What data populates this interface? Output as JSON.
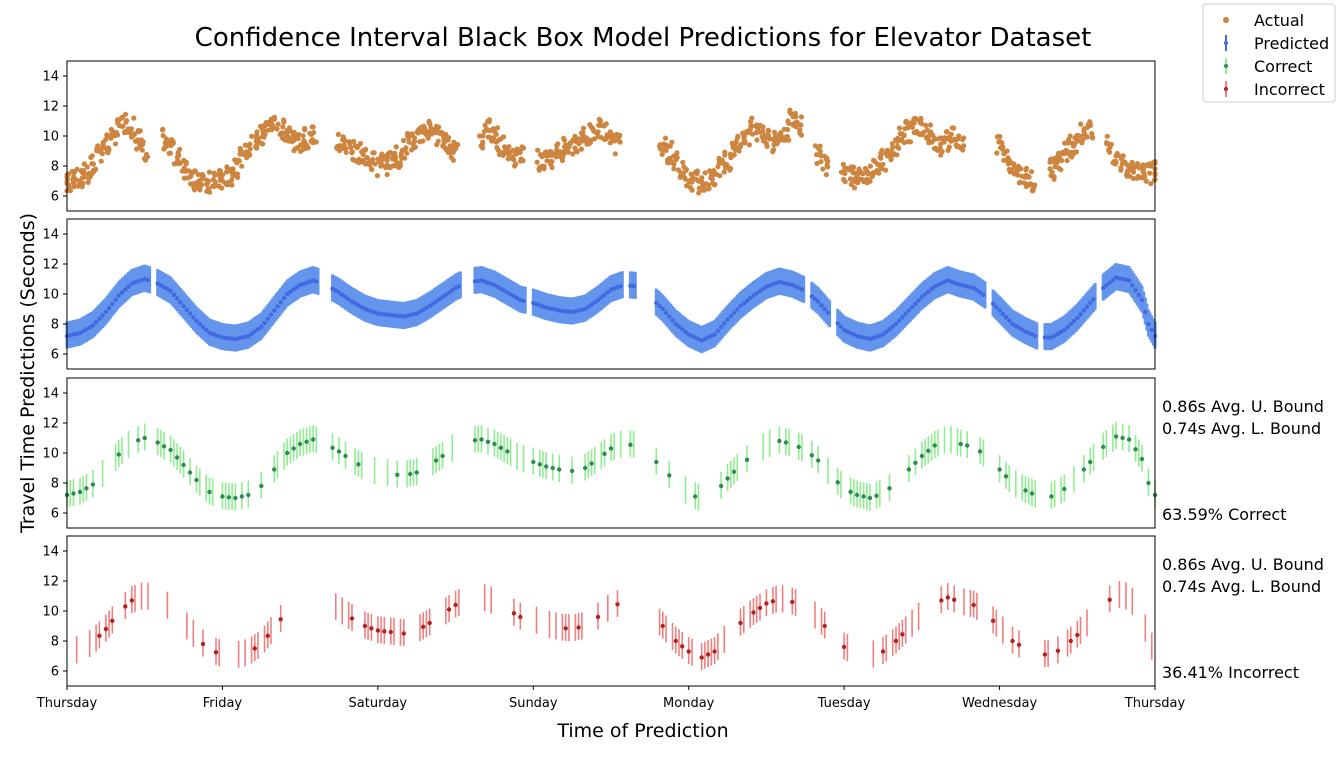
{
  "chart_data": {
    "type": "scatter",
    "title": "Confidence Interval Black Box Model Predictions for Elevator Dataset",
    "xlabel": "Time of Prediction",
    "ylabel": "Travel Time Predictions (Seconds)",
    "x_ticks": [
      "Thursday",
      "Friday",
      "Saturday",
      "Sunday",
      "Monday",
      "Tuesday",
      "Wednesday",
      "Thursday"
    ],
    "ylim": [
      5,
      15
    ],
    "yticks": [
      6,
      8,
      10,
      12,
      14
    ],
    "grid": false,
    "legend_placement": "top-right",
    "legend": [
      {
        "label": "Actual",
        "color": "#cd853f"
      },
      {
        "label": "Predicted",
        "color": "#4169e1"
      },
      {
        "label": "Correct",
        "color": "#2e8b57"
      },
      {
        "label": "Incorrect",
        "color": "#b22222"
      }
    ],
    "day_start_hours": [
      0,
      24,
      48,
      72,
      96,
      120,
      144,
      168
    ],
    "gaps_hours": [
      [
        13,
        14
      ],
      [
        39,
        41
      ],
      [
        61,
        63
      ],
      [
        71,
        72
      ],
      [
        86,
        87
      ],
      [
        88,
        91
      ],
      [
        114,
        115
      ],
      [
        118,
        119
      ],
      [
        142,
        143
      ],
      [
        150,
        151
      ],
      [
        159,
        160
      ]
    ],
    "panels": [
      {
        "name": "actual",
        "series": "Actual",
        "color": "#cd853f",
        "description_profile": "scatter of observed travel times",
        "points": [
          [
            0,
            6.8
          ],
          [
            1,
            7.0
          ],
          [
            2,
            7.2
          ],
          [
            3,
            7.5
          ],
          [
            4,
            8.0
          ],
          [
            5,
            8.9
          ],
          [
            6,
            9.4
          ],
          [
            7,
            9.8
          ],
          [
            8,
            10.5
          ],
          [
            9,
            10.9
          ],
          [
            10,
            10.6
          ],
          [
            11,
            9.7
          ],
          [
            12,
            9.0
          ],
          [
            15,
            9.8
          ],
          [
            16,
            9.2
          ],
          [
            17,
            8.7
          ],
          [
            18,
            7.8
          ],
          [
            19,
            7.2
          ],
          [
            20,
            7.0
          ],
          [
            21,
            7.1
          ],
          [
            22,
            6.9
          ],
          [
            23,
            7.0
          ],
          [
            24,
            7.1
          ],
          [
            25,
            7.3
          ],
          [
            26,
            7.8
          ],
          [
            27,
            8.5
          ],
          [
            28,
            9.0
          ],
          [
            29,
            9.6
          ],
          [
            30,
            10.1
          ],
          [
            31,
            10.5
          ],
          [
            32,
            10.8
          ],
          [
            33,
            10.4
          ],
          [
            34,
            9.9
          ],
          [
            35,
            9.6
          ],
          [
            36,
            9.5
          ],
          [
            37,
            9.8
          ],
          [
            38,
            10.0
          ],
          [
            42,
            9.7
          ],
          [
            43,
            9.4
          ],
          [
            44,
            9.1
          ],
          [
            45,
            8.8
          ],
          [
            46,
            8.5
          ],
          [
            47,
            8.2
          ],
          [
            48,
            8.0
          ],
          [
            49,
            8.1
          ],
          [
            50,
            8.3
          ],
          [
            51,
            8.6
          ],
          [
            52,
            9.0
          ],
          [
            53,
            9.5
          ],
          [
            54,
            9.9
          ],
          [
            55,
            10.2
          ],
          [
            56,
            10.4
          ],
          [
            57,
            10.0
          ],
          [
            58,
            9.6
          ],
          [
            59,
            9.2
          ],
          [
            60,
            9.0
          ],
          [
            64,
            9.8
          ],
          [
            65,
            10.4
          ],
          [
            66,
            9.9
          ],
          [
            67,
            9.4
          ],
          [
            68,
            9.0
          ],
          [
            69,
            8.7
          ],
          [
            70,
            8.6
          ],
          [
            73,
            8.4
          ],
          [
            74,
            8.3
          ],
          [
            75,
            8.6
          ],
          [
            76,
            8.9
          ],
          [
            77,
            9.2
          ],
          [
            78,
            9.4
          ],
          [
            79,
            9.6
          ],
          [
            80,
            9.9
          ],
          [
            81,
            10.1
          ],
          [
            82,
            10.6
          ],
          [
            83,
            10.3
          ],
          [
            84,
            9.8
          ],
          [
            85,
            9.5
          ],
          [
            92,
            9.4
          ],
          [
            93,
            8.9
          ],
          [
            94,
            8.3
          ],
          [
            95,
            7.6
          ],
          [
            96,
            7.2
          ],
          [
            97,
            7.0
          ],
          [
            98,
            6.9
          ],
          [
            99,
            7.1
          ],
          [
            100,
            7.4
          ],
          [
            101,
            7.9
          ],
          [
            102,
            8.4
          ],
          [
            103,
            9.0
          ],
          [
            104,
            9.6
          ],
          [
            105,
            10.1
          ],
          [
            106,
            10.5
          ],
          [
            107,
            10.3
          ],
          [
            108,
            9.9
          ],
          [
            109,
            9.6
          ],
          [
            110,
            9.8
          ],
          [
            111,
            10.4
          ],
          [
            112,
            11.2
          ],
          [
            113,
            10.6
          ],
          [
            116,
            8.8
          ],
          [
            117,
            8.0
          ],
          [
            120,
            7.6
          ],
          [
            121,
            7.3
          ],
          [
            122,
            7.1
          ],
          [
            123,
            7.2
          ],
          [
            124,
            7.4
          ],
          [
            125,
            7.9
          ],
          [
            126,
            8.4
          ],
          [
            127,
            8.9
          ],
          [
            128,
            9.4
          ],
          [
            129,
            9.9
          ],
          [
            130,
            10.3
          ],
          [
            131,
            10.8
          ],
          [
            132,
            10.5
          ],
          [
            133,
            10.1
          ],
          [
            134,
            9.5
          ],
          [
            135,
            9.2
          ],
          [
            136,
            9.6
          ],
          [
            137,
            9.9
          ],
          [
            138,
            9.5
          ],
          [
            144,
            9.3
          ],
          [
            145,
            8.6
          ],
          [
            146,
            7.8
          ],
          [
            147,
            7.4
          ],
          [
            148,
            7.2
          ],
          [
            149,
            7.0
          ],
          [
            152,
            7.8
          ],
          [
            153,
            8.4
          ],
          [
            154,
            8.9
          ],
          [
            155,
            9.3
          ],
          [
            156,
            9.6
          ],
          [
            157,
            10.2
          ],
          [
            158,
            10.5
          ],
          [
            161,
            9.6
          ],
          [
            162,
            8.8
          ],
          [
            163,
            8.3
          ],
          [
            164,
            7.9
          ],
          [
            165,
            7.6
          ],
          [
            166,
            7.4
          ],
          [
            167,
            7.5
          ],
          [
            168,
            7.6
          ]
        ]
      },
      {
        "name": "predicted",
        "series": "Predicted",
        "color": "#4169e1",
        "band_color": "#6495ed",
        "description_profile": "predicted mean with confidence band"
      },
      {
        "name": "correct",
        "series": "Correct",
        "color": "#2e8b57",
        "band_color": "#90ee90",
        "annotations": [
          "0.86s Avg. U. Bound",
          "0.74s Avg. L. Bound",
          "63.59% Correct"
        ]
      },
      {
        "name": "incorrect",
        "series": "Incorrect",
        "color": "#b22222",
        "band_color": "#f08080",
        "annotations": [
          "0.86s Avg. U. Bound",
          "0.74s Avg. L. Bound",
          "36.41% Incorrect"
        ]
      }
    ],
    "prediction_curve": [
      [
        0,
        7.2
      ],
      [
        2,
        7.4
      ],
      [
        4,
        7.9
      ],
      [
        6,
        8.8
      ],
      [
        8,
        9.9
      ],
      [
        10,
        10.7
      ],
      [
        12,
        11.0
      ],
      [
        14,
        10.7
      ],
      [
        16,
        10.2
      ],
      [
        18,
        9.2
      ],
      [
        20,
        8.2
      ],
      [
        22,
        7.4
      ],
      [
        24,
        7.1
      ],
      [
        26,
        7.0
      ],
      [
        28,
        7.2
      ],
      [
        30,
        7.8
      ],
      [
        32,
        8.9
      ],
      [
        34,
        10.0
      ],
      [
        36,
        10.6
      ],
      [
        38,
        10.9
      ],
      [
        40,
        10.6
      ],
      [
        42,
        10.1
      ],
      [
        44,
        9.5
      ],
      [
        46,
        9.0
      ],
      [
        48,
        8.7
      ],
      [
        50,
        8.6
      ],
      [
        52,
        8.5
      ],
      [
        54,
        8.7
      ],
      [
        56,
        9.2
      ],
      [
        58,
        9.8
      ],
      [
        60,
        10.4
      ],
      [
        62,
        10.8
      ],
      [
        64,
        10.9
      ],
      [
        66,
        10.6
      ],
      [
        68,
        10.1
      ],
      [
        70,
        9.6
      ],
      [
        72,
        9.4
      ],
      [
        74,
        9.1
      ],
      [
        76,
        8.9
      ],
      [
        78,
        8.8
      ],
      [
        80,
        9.0
      ],
      [
        82,
        9.6
      ],
      [
        84,
        10.3
      ],
      [
        86,
        10.6
      ],
      [
        88,
        10.5
      ],
      [
        90,
        9.8
      ],
      [
        92,
        9.0
      ],
      [
        94,
        8.0
      ],
      [
        96,
        7.3
      ],
      [
        98,
        6.9
      ],
      [
        100,
        7.3
      ],
      [
        102,
        8.3
      ],
      [
        104,
        9.2
      ],
      [
        106,
        9.9
      ],
      [
        108,
        10.5
      ],
      [
        110,
        10.8
      ],
      [
        112,
        10.6
      ],
      [
        114,
        10.2
      ],
      [
        116,
        9.5
      ],
      [
        118,
        8.5
      ],
      [
        120,
        7.6
      ],
      [
        122,
        7.2
      ],
      [
        124,
        7.0
      ],
      [
        126,
        7.3
      ],
      [
        128,
        8.0
      ],
      [
        130,
        8.9
      ],
      [
        132,
        9.8
      ],
      [
        134,
        10.5
      ],
      [
        136,
        10.9
      ],
      [
        138,
        10.6
      ],
      [
        140,
        10.4
      ],
      [
        142,
        9.8
      ],
      [
        144,
        8.9
      ],
      [
        146,
        8.0
      ],
      [
        148,
        7.5
      ],
      [
        150,
        7.1
      ],
      [
        152,
        7.1
      ],
      [
        154,
        7.6
      ],
      [
        156,
        8.4
      ],
      [
        158,
        9.4
      ],
      [
        160,
        10.4
      ],
      [
        162,
        11.1
      ],
      [
        164,
        10.9
      ],
      [
        166,
        9.6
      ],
      [
        167,
        8.0
      ],
      [
        168,
        7.2
      ]
    ]
  }
}
